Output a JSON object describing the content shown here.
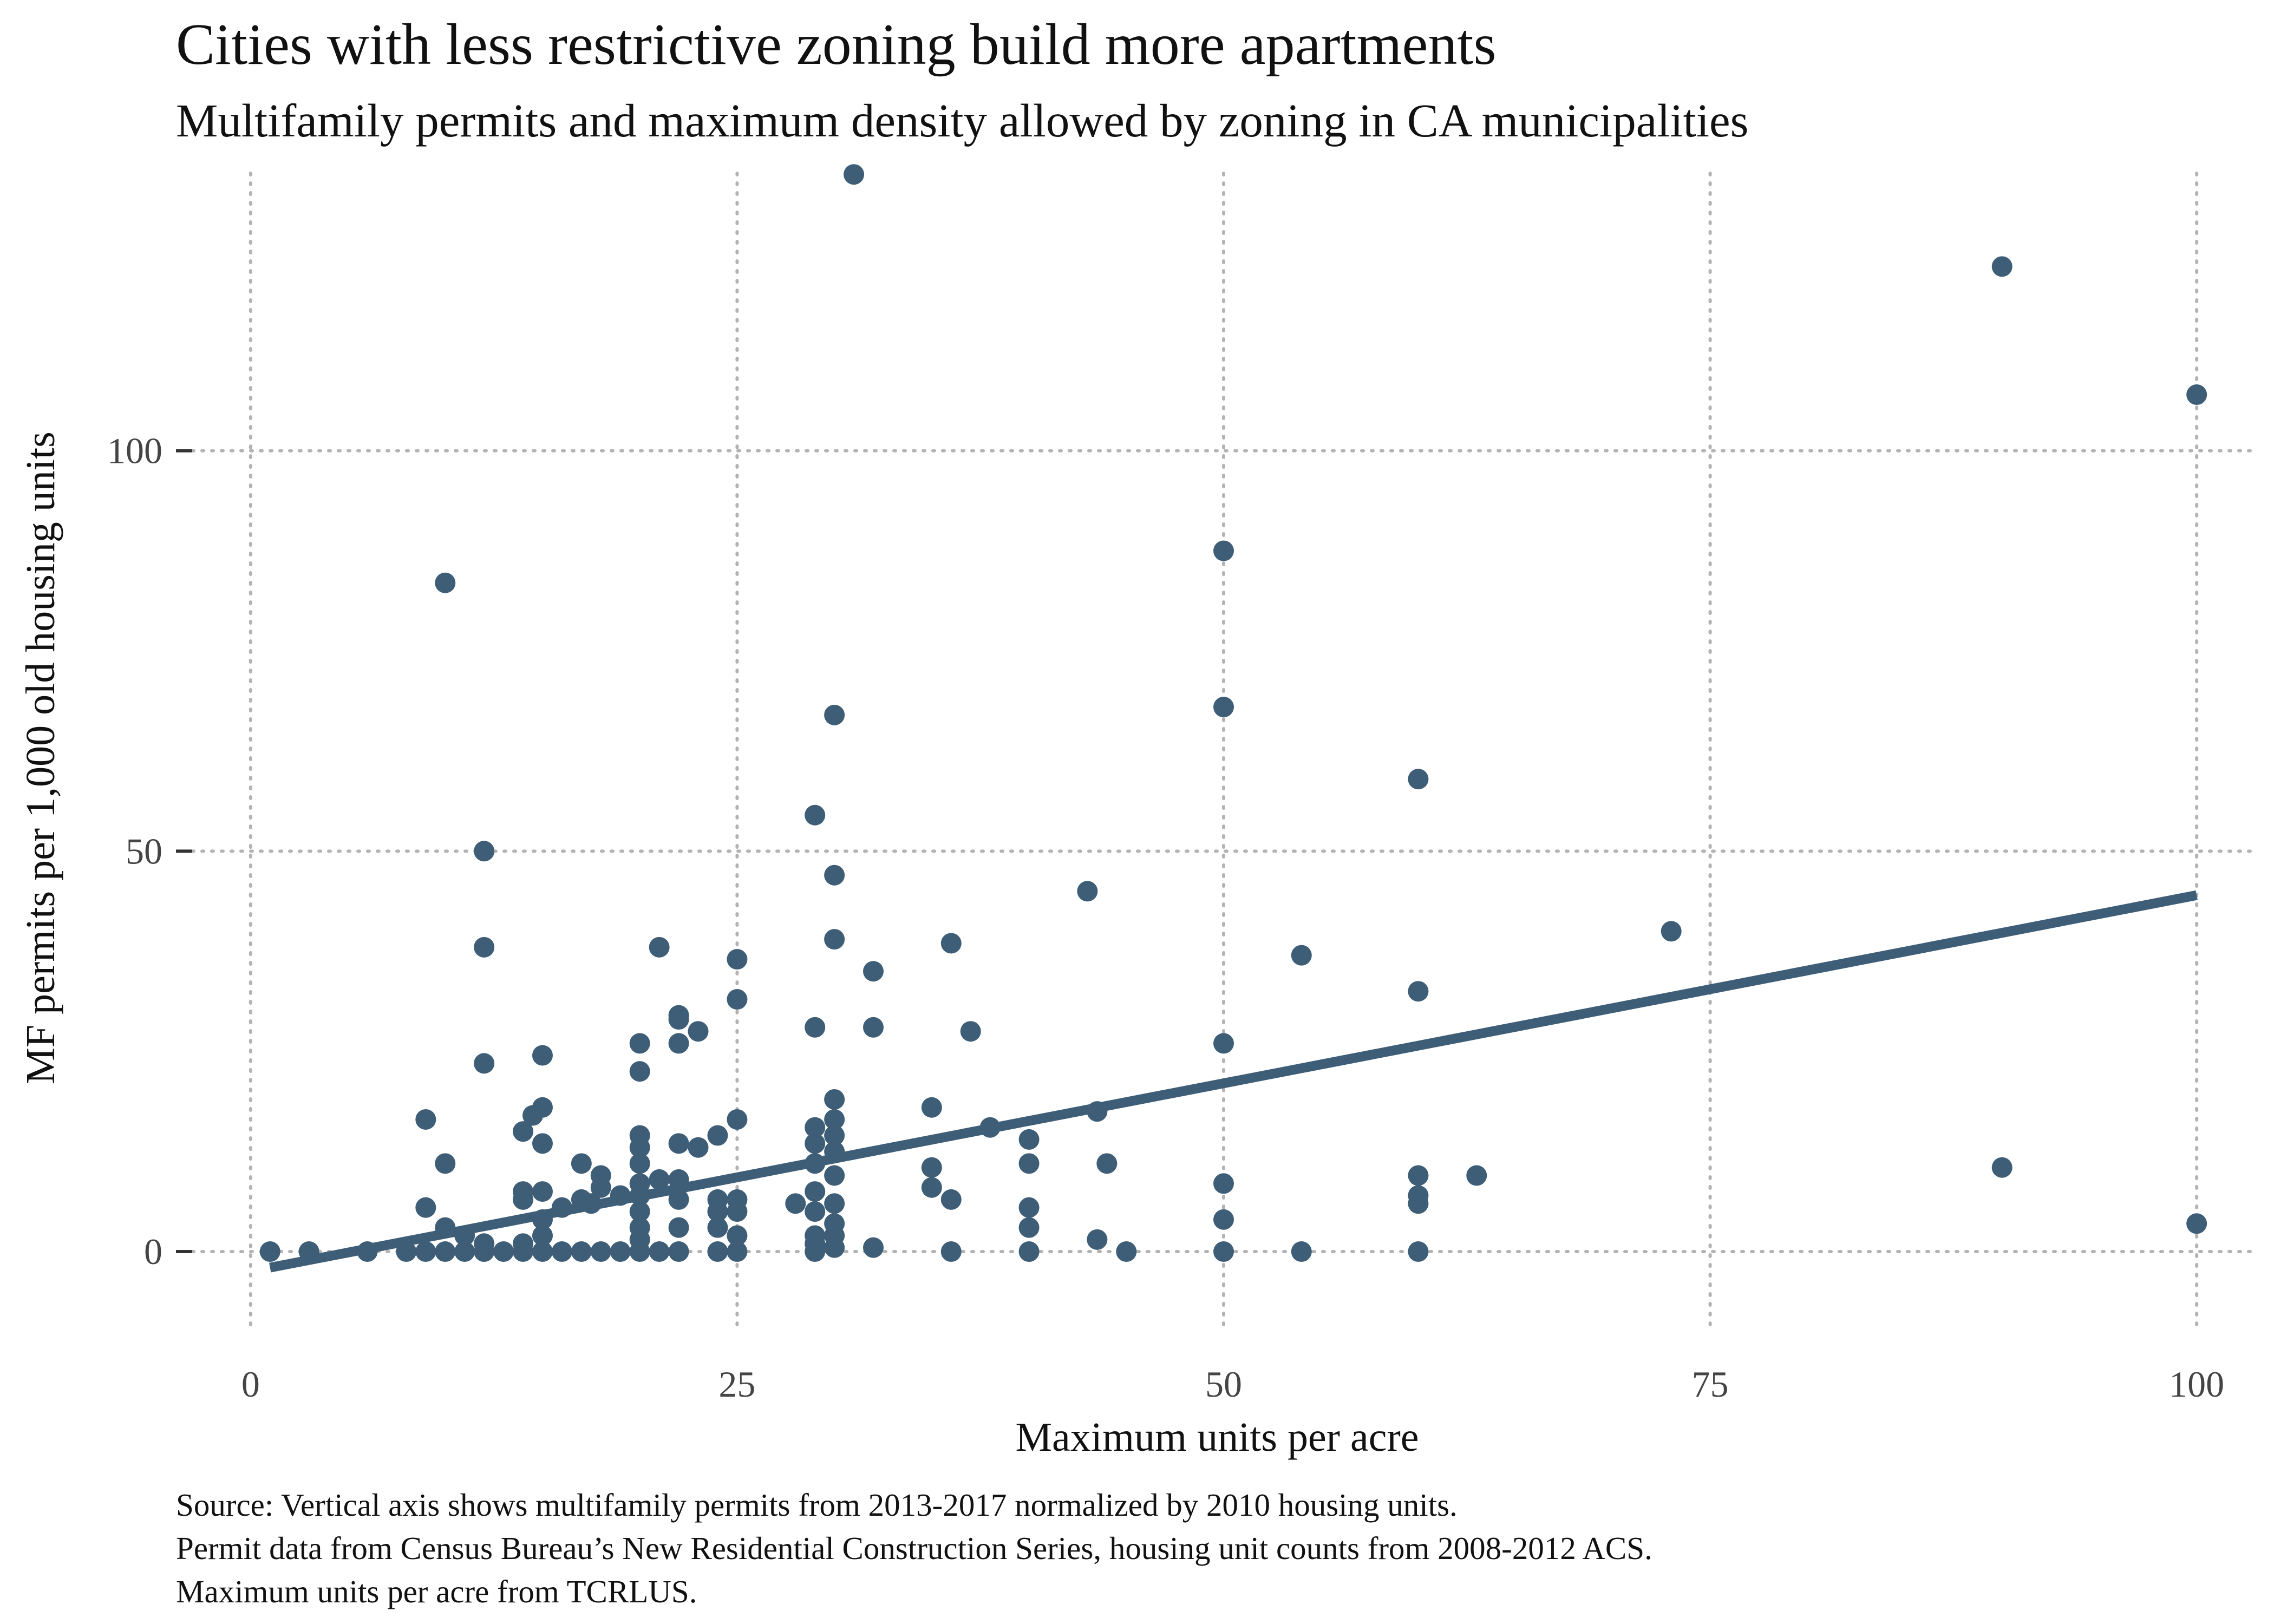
{
  "chart_data": {
    "type": "scatter",
    "title": "Cities with less restrictive zoning build more apartments",
    "subtitle": "Multifamily permits and maximum density allowed by zoning in CA municipalities",
    "xlabel": "Maximum units per acre",
    "ylabel": "MF permits per 1,000 old housing units",
    "xlim": [
      -3,
      103
    ],
    "ylim": [
      -10,
      136
    ],
    "x_ticks": [
      0,
      25,
      50,
      75,
      100
    ],
    "x_tick_labels": [
      "0",
      "25",
      "50",
      "75",
      "100"
    ],
    "y_ticks": [
      0,
      50,
      100
    ],
    "y_tick_labels": [
      "0",
      "50",
      "100"
    ],
    "grid": true,
    "legend": "none",
    "point_color": "#3e5d77",
    "trend_color": "#3e5d77",
    "trend_line": {
      "x": [
        1,
        100
      ],
      "y": [
        -2,
        44.5
      ]
    },
    "points": [
      {
        "x": 1,
        "y": 0
      },
      {
        "x": 3,
        "y": 0
      },
      {
        "x": 6,
        "y": 0
      },
      {
        "x": 8,
        "y": 0
      },
      {
        "x": 9,
        "y": 0
      },
      {
        "x": 9,
        "y": 16.5
      },
      {
        "x": 9,
        "y": 5.5
      },
      {
        "x": 10,
        "y": 83.5
      },
      {
        "x": 10,
        "y": 11
      },
      {
        "x": 10,
        "y": 3
      },
      {
        "x": 10,
        "y": 0
      },
      {
        "x": 11,
        "y": 2
      },
      {
        "x": 11,
        "y": 0
      },
      {
        "x": 12,
        "y": 50
      },
      {
        "x": 12,
        "y": 38
      },
      {
        "x": 12,
        "y": 23.5
      },
      {
        "x": 12,
        "y": 1
      },
      {
        "x": 12,
        "y": 0
      },
      {
        "x": 13,
        "y": 0
      },
      {
        "x": 14,
        "y": 15
      },
      {
        "x": 14,
        "y": 7.5
      },
      {
        "x": 14,
        "y": 6.5
      },
      {
        "x": 14,
        "y": 1
      },
      {
        "x": 14,
        "y": 0
      },
      {
        "x": 14.5,
        "y": 17
      },
      {
        "x": 15,
        "y": 24.5
      },
      {
        "x": 15,
        "y": 18
      },
      {
        "x": 15,
        "y": 13.5
      },
      {
        "x": 15,
        "y": 7.5
      },
      {
        "x": 15,
        "y": 4
      },
      {
        "x": 15,
        "y": 2
      },
      {
        "x": 15,
        "y": 0
      },
      {
        "x": 16,
        "y": 5.5
      },
      {
        "x": 16,
        "y": 0
      },
      {
        "x": 17,
        "y": 11
      },
      {
        "x": 17,
        "y": 6.5
      },
      {
        "x": 17,
        "y": 0
      },
      {
        "x": 17.5,
        "y": 6
      },
      {
        "x": 18,
        "y": 9.5
      },
      {
        "x": 18,
        "y": 8
      },
      {
        "x": 18,
        "y": 0
      },
      {
        "x": 19,
        "y": 7
      },
      {
        "x": 19,
        "y": 0
      },
      {
        "x": 20,
        "y": 26
      },
      {
        "x": 20,
        "y": 22.5
      },
      {
        "x": 20,
        "y": 14.5
      },
      {
        "x": 20,
        "y": 13
      },
      {
        "x": 20,
        "y": 11
      },
      {
        "x": 20,
        "y": 8.5
      },
      {
        "x": 20,
        "y": 7
      },
      {
        "x": 20,
        "y": 5
      },
      {
        "x": 20,
        "y": 3
      },
      {
        "x": 20,
        "y": 1.5
      },
      {
        "x": 20,
        "y": 0
      },
      {
        "x": 21,
        "y": 38
      },
      {
        "x": 21,
        "y": 9
      },
      {
        "x": 21,
        "y": 0
      },
      {
        "x": 22,
        "y": 29.5
      },
      {
        "x": 22,
        "y": 29
      },
      {
        "x": 22,
        "y": 26
      },
      {
        "x": 22,
        "y": 13.5
      },
      {
        "x": 22,
        "y": 9
      },
      {
        "x": 22,
        "y": 6.5
      },
      {
        "x": 22,
        "y": 3
      },
      {
        "x": 22,
        "y": 0
      },
      {
        "x": 23,
        "y": 27.5
      },
      {
        "x": 23,
        "y": 13
      },
      {
        "x": 24,
        "y": 14.5
      },
      {
        "x": 24,
        "y": 6.5
      },
      {
        "x": 24,
        "y": 5
      },
      {
        "x": 24,
        "y": 3
      },
      {
        "x": 24,
        "y": 0
      },
      {
        "x": 25,
        "y": 36.5
      },
      {
        "x": 25,
        "y": 31.5
      },
      {
        "x": 25,
        "y": 16.5
      },
      {
        "x": 25,
        "y": 6.5
      },
      {
        "x": 25,
        "y": 5
      },
      {
        "x": 25,
        "y": 2
      },
      {
        "x": 25,
        "y": 0
      },
      {
        "x": 28,
        "y": 6
      },
      {
        "x": 29,
        "y": 54.5
      },
      {
        "x": 29,
        "y": 28
      },
      {
        "x": 29,
        "y": 15.5
      },
      {
        "x": 29,
        "y": 13.5
      },
      {
        "x": 29,
        "y": 11
      },
      {
        "x": 29,
        "y": 7.5
      },
      {
        "x": 29,
        "y": 5
      },
      {
        "x": 29,
        "y": 2
      },
      {
        "x": 29,
        "y": 1
      },
      {
        "x": 29,
        "y": 0
      },
      {
        "x": 30,
        "y": 67
      },
      {
        "x": 30,
        "y": 47
      },
      {
        "x": 30,
        "y": 39
      },
      {
        "x": 30,
        "y": 19
      },
      {
        "x": 30,
        "y": 16.5
      },
      {
        "x": 30,
        "y": 14.5
      },
      {
        "x": 30,
        "y": 12.5
      },
      {
        "x": 30,
        "y": 9.5
      },
      {
        "x": 30,
        "y": 6
      },
      {
        "x": 30,
        "y": 3.5
      },
      {
        "x": 30,
        "y": 2
      },
      {
        "x": 30,
        "y": 0.5
      },
      {
        "x": 31,
        "y": 134.5
      },
      {
        "x": 32,
        "y": 35
      },
      {
        "x": 32,
        "y": 28
      },
      {
        "x": 32,
        "y": 0.5
      },
      {
        "x": 35,
        "y": 18
      },
      {
        "x": 35,
        "y": 10.5
      },
      {
        "x": 35,
        "y": 8
      },
      {
        "x": 36,
        "y": 38.5
      },
      {
        "x": 36,
        "y": 6.5
      },
      {
        "x": 36,
        "y": 0
      },
      {
        "x": 37,
        "y": 27.5
      },
      {
        "x": 38,
        "y": 15.5
      },
      {
        "x": 40,
        "y": 14
      },
      {
        "x": 40,
        "y": 11
      },
      {
        "x": 40,
        "y": 5.5
      },
      {
        "x": 40,
        "y": 3
      },
      {
        "x": 40,
        "y": 0
      },
      {
        "x": 43,
        "y": 45
      },
      {
        "x": 43.5,
        "y": 17.5
      },
      {
        "x": 43.5,
        "y": 1.5
      },
      {
        "x": 44,
        "y": 11
      },
      {
        "x": 45,
        "y": 0
      },
      {
        "x": 50,
        "y": 87.5
      },
      {
        "x": 50,
        "y": 68
      },
      {
        "x": 50,
        "y": 26
      },
      {
        "x": 50,
        "y": 8.5
      },
      {
        "x": 50,
        "y": 4
      },
      {
        "x": 50,
        "y": 0
      },
      {
        "x": 54,
        "y": 37
      },
      {
        "x": 54,
        "y": 0
      },
      {
        "x": 60,
        "y": 59
      },
      {
        "x": 60,
        "y": 32.5
      },
      {
        "x": 60,
        "y": 9.5
      },
      {
        "x": 60,
        "y": 7
      },
      {
        "x": 60,
        "y": 6
      },
      {
        "x": 60,
        "y": 0
      },
      {
        "x": 63,
        "y": 9.5
      },
      {
        "x": 73,
        "y": 40
      },
      {
        "x": 90,
        "y": 123
      },
      {
        "x": 90,
        "y": 10.5
      },
      {
        "x": 100,
        "y": 107
      },
      {
        "x": 100,
        "y": 3.5
      }
    ]
  },
  "caption": {
    "line1": "Source: Vertical axis shows multifamily permits from 2013-2017 normalized by 2010 housing units.",
    "line2": "Permit data from Census Bureau’s New Residential Construction Series, housing unit counts from 2008-2012 ACS.",
    "line3": "Maximum units per acre from TCRLUS."
  }
}
